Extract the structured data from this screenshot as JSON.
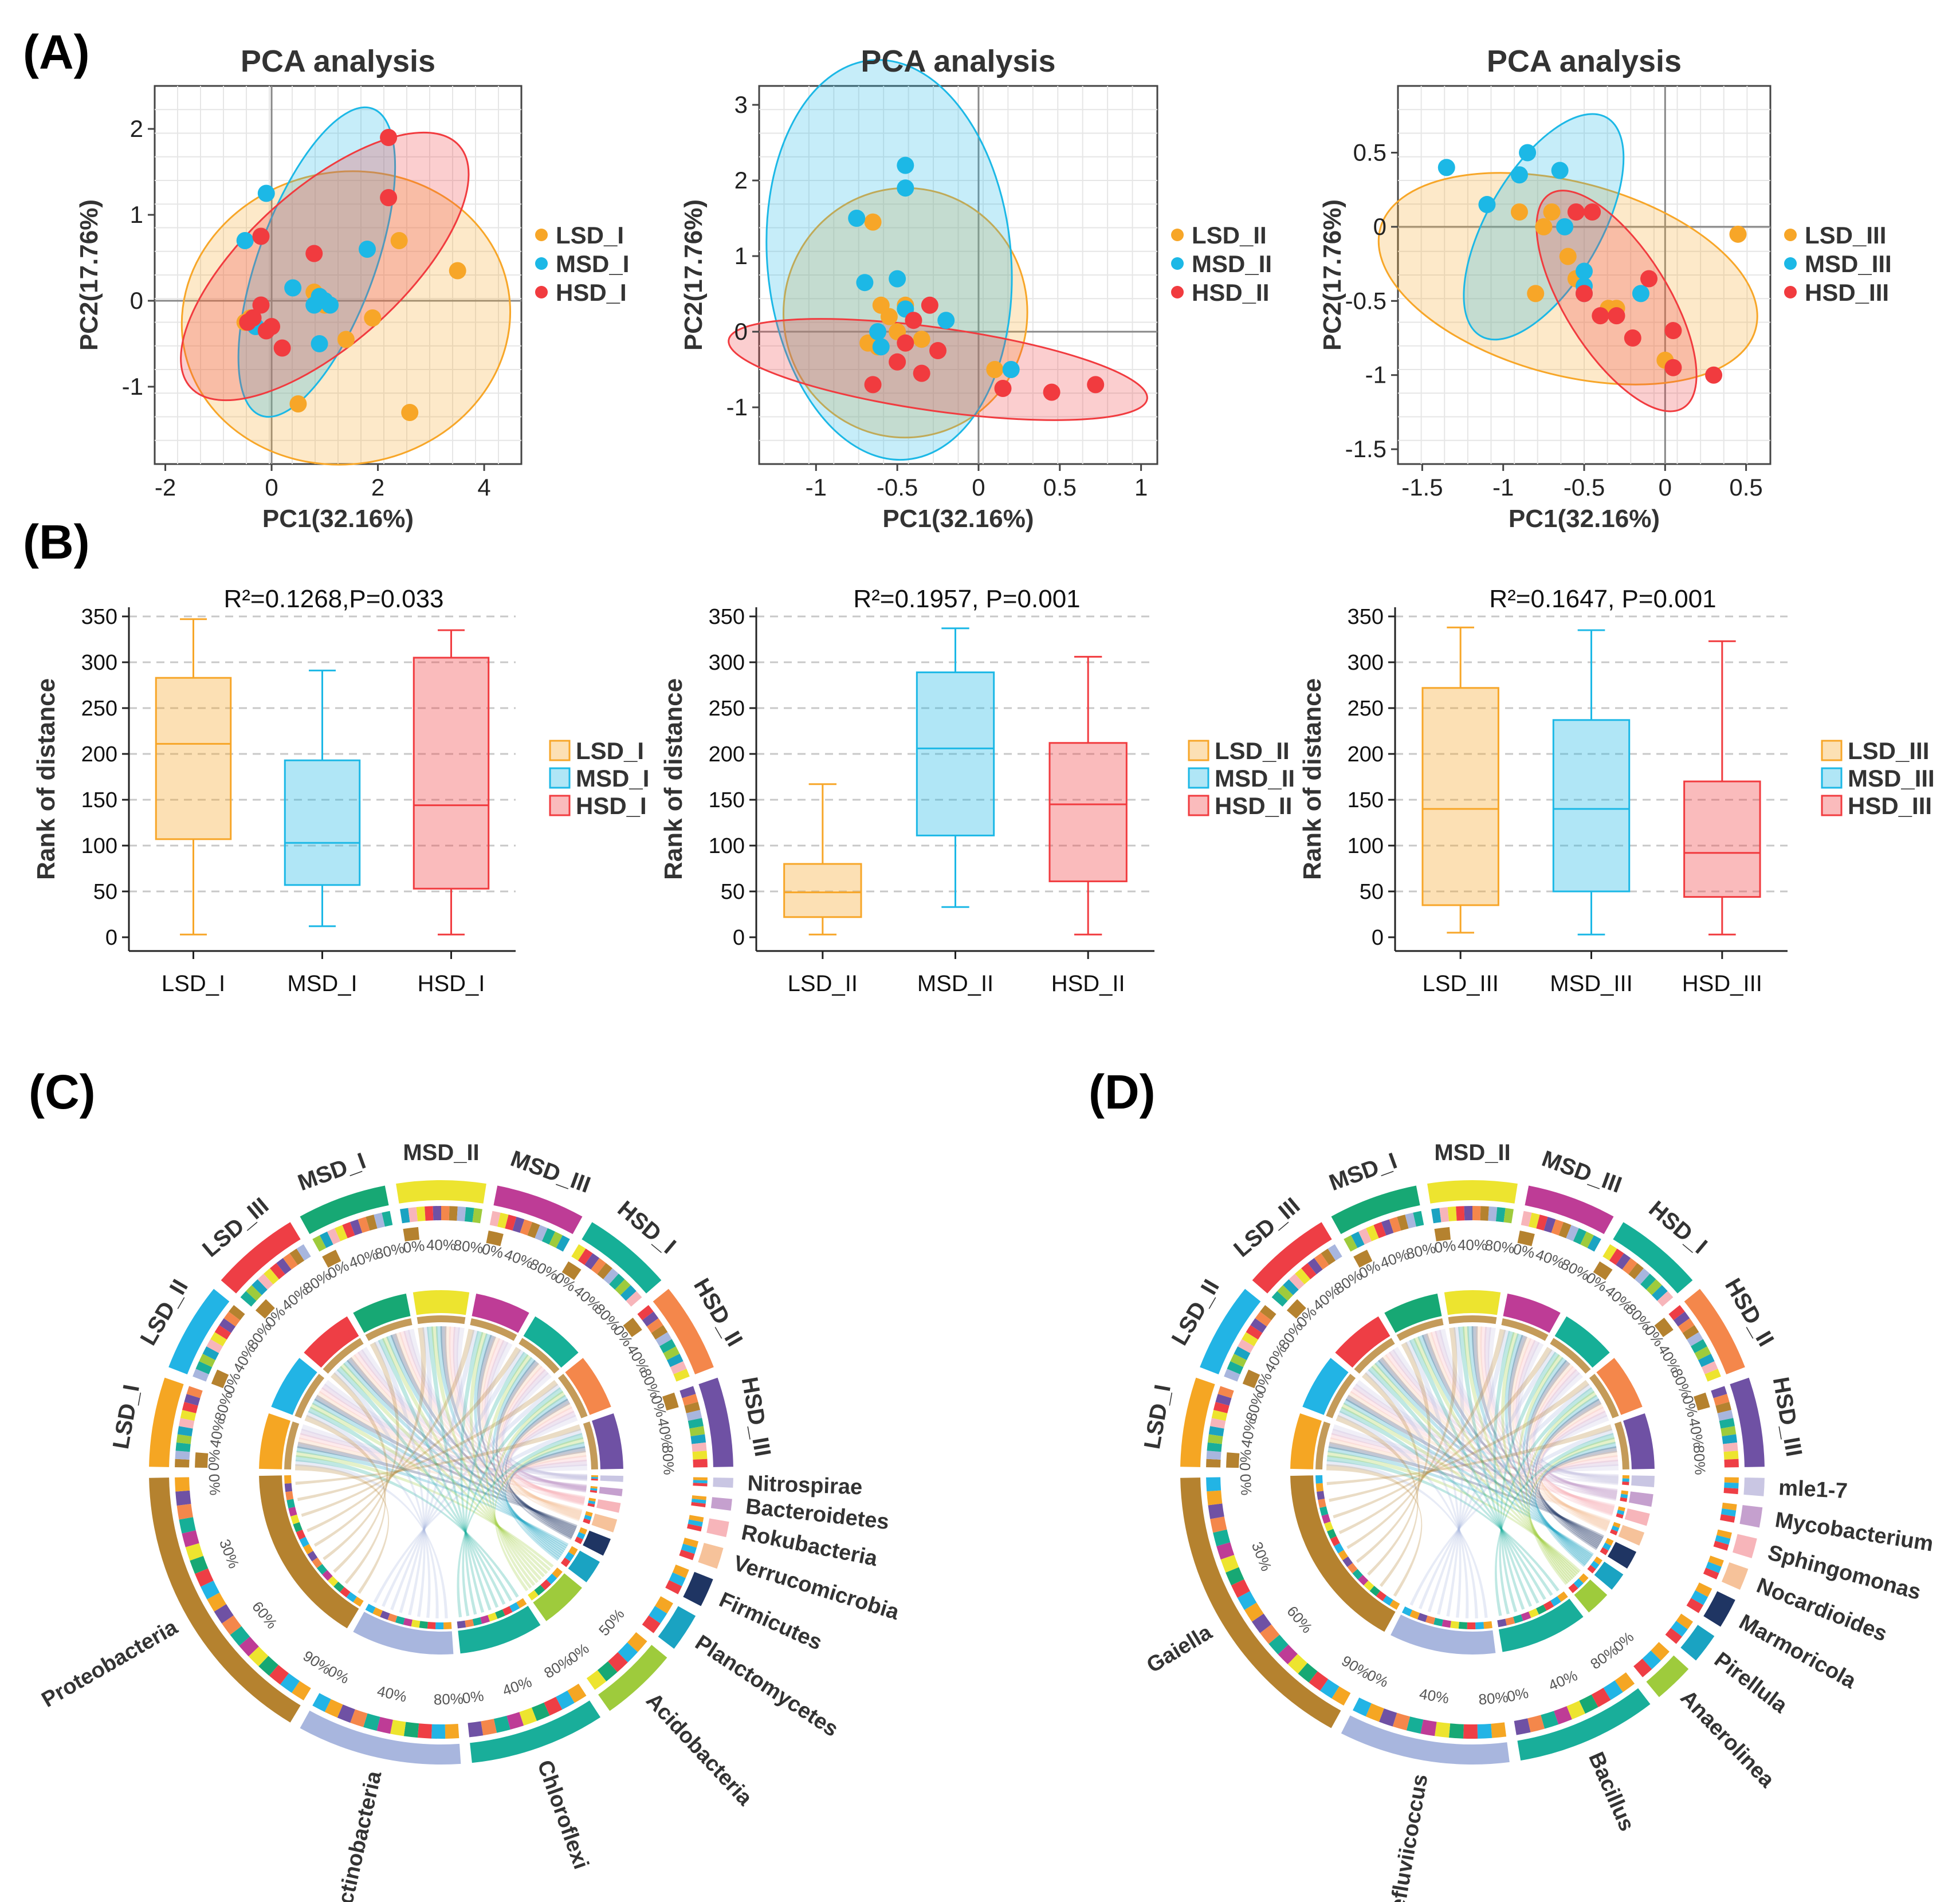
{
  "colors": {
    "LSD": "#F7A628",
    "MSD": "#1CB8E6",
    "HSD": "#F13B3F"
  },
  "panels": {
    "a": "(A)",
    "b": "(B)",
    "c": "(C)",
    "d": "(D)"
  },
  "chart_data": [
    {
      "type": "scatter",
      "id": "pca1",
      "title": "PCA analysis",
      "xlabel": "PC1(32.16%)",
      "ylabel": "PC2(17.76%)",
      "xlim": [
        -2.2,
        4.7
      ],
      "ylim": [
        -1.9,
        2.5
      ],
      "xticks": [
        -2,
        0,
        2,
        4
      ],
      "yticks": [
        -1,
        0,
        1,
        2
      ],
      "series": [
        {
          "name": "LSD_I",
          "group": "LSD",
          "x": [
            -0.5,
            0.5,
            0.8,
            1.0,
            1.4,
            1.9,
            2.4,
            3.5,
            2.6,
            -0.4
          ],
          "y": [
            -0.25,
            -1.2,
            0.1,
            -0.05,
            -0.45,
            -0.2,
            0.7,
            0.35,
            -1.3,
            -0.2
          ]
        },
        {
          "name": "MSD_I",
          "group": "MSD",
          "x": [
            -0.5,
            -0.1,
            0.4,
            0.8,
            0.9,
            1.0,
            1.1,
            0.9,
            1.8,
            -0.3
          ],
          "y": [
            0.7,
            1.25,
            0.15,
            -0.05,
            0.05,
            0.0,
            -0.05,
            -0.5,
            0.6,
            -0.3
          ]
        },
        {
          "name": "HSD_I",
          "group": "HSD",
          "x": [
            -0.2,
            -0.2,
            -0.35,
            0.0,
            -0.1,
            0.2,
            0.8,
            2.2,
            2.2,
            -0.45
          ],
          "y": [
            0.75,
            -0.05,
            -0.2,
            -0.3,
            -0.35,
            -0.55,
            0.55,
            1.9,
            1.2,
            -0.25
          ]
        }
      ],
      "ellipses": [
        {
          "group": "LSD",
          "cx": 1.4,
          "cy": -0.2,
          "rx": 3.1,
          "ry": 1.7,
          "angle": 10
        },
        {
          "group": "MSD",
          "cx": 0.85,
          "cy": 0.45,
          "rx": 1.1,
          "ry": 1.9,
          "angle": -20
        },
        {
          "group": "HSD",
          "cx": 1.0,
          "cy": 0.4,
          "rx": 3.4,
          "ry": 0.9,
          "angle": 42
        }
      ]
    },
    {
      "type": "scatter",
      "id": "pca2",
      "title": "PCA analysis",
      "xlabel": "PC1(32.16%)",
      "ylabel": "PC2(17.76%)",
      "xlim": [
        -1.35,
        1.1
      ],
      "ylim": [
        -1.75,
        3.25
      ],
      "xticks": [
        -1,
        -0.5,
        0,
        0.5,
        1
      ],
      "yticks": [
        -1,
        0,
        1,
        2,
        3
      ],
      "series": [
        {
          "name": "LSD_II",
          "group": "LSD",
          "x": [
            -0.65,
            -0.6,
            -0.55,
            -0.5,
            -0.45,
            -0.35,
            -0.45,
            0.1,
            -0.68,
            -0.62
          ],
          "y": [
            1.45,
            0.35,
            0.2,
            0.0,
            -0.15,
            -0.1,
            0.35,
            -0.5,
            -0.15,
            -0.2
          ]
        },
        {
          "name": "MSD_II",
          "group": "MSD",
          "x": [
            -0.75,
            -0.7,
            -0.6,
            -0.5,
            -0.45,
            -0.45,
            -0.45,
            -0.2,
            0.2,
            -0.62
          ],
          "y": [
            1.5,
            0.65,
            -0.2,
            0.7,
            1.9,
            2.2,
            0.3,
            0.15,
            -0.5,
            0.0
          ]
        },
        {
          "name": "HSD_II",
          "group": "HSD",
          "x": [
            -0.65,
            -0.5,
            -0.45,
            -0.4,
            -0.35,
            -0.3,
            -0.25,
            0.15,
            0.45,
            0.72
          ],
          "y": [
            -0.7,
            -0.4,
            -0.15,
            0.15,
            -0.55,
            0.35,
            -0.25,
            -0.75,
            -0.8,
            -0.7
          ]
        }
      ],
      "ellipses": [
        {
          "group": "LSD",
          "cx": -0.45,
          "cy": 0.25,
          "rx": 0.75,
          "ry": 1.65,
          "angle": -5
        },
        {
          "group": "MSD",
          "cx": -0.55,
          "cy": 0.95,
          "rx": 0.75,
          "ry": 2.65,
          "angle": 5
        },
        {
          "group": "HSD",
          "cx": -0.25,
          "cy": -0.5,
          "rx": 1.3,
          "ry": 0.55,
          "angle": -8
        }
      ]
    },
    {
      "type": "scatter",
      "id": "pca3",
      "title": "PCA analysis",
      "xlabel": "PC1(32.16%)",
      "ylabel": "PC2(17.76%)",
      "xlim": [
        -1.65,
        0.65
      ],
      "ylim": [
        -1.6,
        0.95
      ],
      "xticks": [
        -1.5,
        -1,
        -0.5,
        0,
        0.5
      ],
      "yticks": [
        -1.5,
        -1,
        -0.5,
        0,
        0.5
      ],
      "series": [
        {
          "name": "LSD_III",
          "group": "LSD",
          "x": [
            -0.9,
            -0.8,
            -0.75,
            -0.7,
            -0.6,
            -0.55,
            -0.35,
            -0.3,
            0.0,
            0.45
          ],
          "y": [
            0.1,
            -0.45,
            0.0,
            0.1,
            -0.2,
            -0.35,
            -0.55,
            -0.55,
            -0.9,
            -0.05
          ]
        },
        {
          "name": "MSD_III",
          "group": "MSD",
          "x": [
            -1.35,
            -1.1,
            -0.9,
            -0.85,
            -0.65,
            -0.62,
            -0.5,
            -0.5,
            -0.15,
            -0.5
          ],
          "y": [
            0.4,
            0.15,
            0.35,
            0.5,
            0.38,
            0.0,
            -0.3,
            -0.45,
            -0.45,
            -0.4
          ]
        },
        {
          "name": "HSD_III",
          "group": "HSD",
          "x": [
            -0.55,
            -0.45,
            -0.5,
            -0.3,
            -0.2,
            -0.1,
            0.05,
            0.05,
            0.3,
            -0.4
          ],
          "y": [
            0.1,
            0.1,
            -0.45,
            -0.6,
            -0.75,
            -0.35,
            -0.7,
            -0.95,
            -1.0,
            -0.6
          ]
        }
      ],
      "ellipses": [
        {
          "group": "LSD",
          "cx": -0.6,
          "cy": -0.35,
          "rx": 1.2,
          "ry": 0.65,
          "angle": -15
        },
        {
          "group": "MSD",
          "cx": -0.75,
          "cy": 0.0,
          "rx": 0.35,
          "ry": 0.85,
          "angle": -30
        },
        {
          "group": "HSD",
          "cx": -0.3,
          "cy": -0.5,
          "rx": 0.32,
          "ry": 0.85,
          "angle": 32
        }
      ]
    },
    {
      "type": "box",
      "id": "box1",
      "title": "R²=0.1268,P=0.033",
      "ylabel": "Rank of distance",
      "ylim": [
        -15,
        360
      ],
      "yticks": [
        0,
        50,
        100,
        150,
        200,
        250,
        300,
        350
      ],
      "categories": [
        "LSD_I",
        "MSD_I",
        "HSD_I"
      ],
      "boxes": [
        {
          "name": "LSD_I",
          "group": "LSD",
          "min": 3,
          "q1": 107,
          "median": 211,
          "q3": 283,
          "max": 347
        },
        {
          "name": "MSD_I",
          "group": "MSD",
          "min": 12,
          "q1": 57,
          "median": 103,
          "q3": 193,
          "max": 291
        },
        {
          "name": "HSD_I",
          "group": "HSD",
          "min": 3,
          "q1": 53,
          "median": 144,
          "q3": 305,
          "max": 335
        }
      ]
    },
    {
      "type": "box",
      "id": "box2",
      "title": "R²=0.1957, P=0.001",
      "ylabel": "Rank of distance",
      "ylim": [
        -15,
        360
      ],
      "yticks": [
        0,
        50,
        100,
        150,
        200,
        250,
        300,
        350
      ],
      "categories": [
        "LSD_II",
        "MSD_II",
        "HSD_II"
      ],
      "boxes": [
        {
          "name": "LSD_II",
          "group": "LSD",
          "min": 3,
          "q1": 22,
          "median": 49,
          "q3": 80,
          "max": 167
        },
        {
          "name": "MSD_II",
          "group": "MSD",
          "min": 33,
          "q1": 111,
          "median": 206,
          "q3": 289,
          "max": 337
        },
        {
          "name": "HSD_II",
          "group": "HSD",
          "min": 3,
          "q1": 61,
          "median": 145,
          "q3": 212,
          "max": 306
        }
      ]
    },
    {
      "type": "box",
      "id": "box3",
      "title": "R²=0.1647, P=0.001",
      "ylabel": "Rank of distance",
      "ylim": [
        -15,
        360
      ],
      "yticks": [
        0,
        50,
        100,
        150,
        200,
        250,
        300,
        350
      ],
      "categories": [
        "LSD_III",
        "MSD_III",
        "HSD_III"
      ],
      "boxes": [
        {
          "name": "LSD_III",
          "group": "LSD",
          "min": 5,
          "q1": 35,
          "median": 140,
          "q3": 272,
          "max": 338
        },
        {
          "name": "MSD_III",
          "group": "MSD",
          "min": 3,
          "q1": 50,
          "median": 140,
          "q3": 237,
          "max": 335
        },
        {
          "name": "HSD_III",
          "group": "HSD",
          "min": 3,
          "q1": 44,
          "median": 92,
          "q3": 170,
          "max": 323
        }
      ]
    },
    {
      "type": "chord",
      "id": "chordC",
      "samples": [
        "LSD_I",
        "LSD_II",
        "LSD_III",
        "MSD_I",
        "MSD_II",
        "MSD_III",
        "HSD_I",
        "HSD_II",
        "HSD_III"
      ],
      "sample_colors": [
        "#F5A623",
        "#22B4E5",
        "#EE3E45",
        "#17A874",
        "#EDE42F",
        "#BE3C96",
        "#16AF97",
        "#F4874B",
        "#6F51A4"
      ],
      "sample_scale": [
        "0%",
        "40%",
        "80%"
      ],
      "taxa": [
        "Proteobacteria",
        "Actinobacteria",
        "Chloroflexi",
        "Acidobacteria",
        "Planctomycetes",
        "Firmicutes",
        "Verrucomicrobia",
        "Rokubacteria",
        "Bacteroidetes",
        "Nitrospirae"
      ],
      "taxa_colors": [
        "#B5822F",
        "#A8B6DE",
        "#19AE9A",
        "#9ECB3C",
        "#1AA3C2",
        "#1F3563",
        "#F6C29A",
        "#F7B5BA",
        "#C5A0CE",
        "#C9C6E3"
      ],
      "taxa_values": [
        30,
        17,
        14,
        8,
        4,
        3,
        2.2,
        1.6,
        1.2,
        1.0
      ],
      "taxa_scale": [
        [
          "0%",
          "30%",
          "60%",
          "90%"
        ],
        [
          "0%",
          "40%",
          "80%"
        ],
        [
          "0%",
          "40%",
          "80%"
        ],
        [
          "0%",
          "50%"
        ]
      ]
    },
    {
      "type": "chord",
      "id": "chordD",
      "samples": [
        "LSD_I",
        "LSD_II",
        "LSD_III",
        "MSD_I",
        "MSD_II",
        "MSD_III",
        "HSD_I",
        "HSD_II",
        "HSD_III"
      ],
      "sample_colors": [
        "#F5A623",
        "#22B4E5",
        "#EE3E45",
        "#17A874",
        "#EDE42F",
        "#BE3C96",
        "#16AF97",
        "#F4874B",
        "#6F51A4"
      ],
      "sample_scale": [
        "0%",
        "40%",
        "80%"
      ],
      "taxa": [
        "Gaiella",
        "Defluviicoccus",
        "Bacillus",
        "Anaerolinea",
        "Pirellula",
        "Marmoricola",
        "Nocardioides",
        "Sphingomonas",
        "Mycobacterium",
        "mle1-7"
      ],
      "taxa_colors": [
        "#B5822F",
        "#A8B6DE",
        "#19AE9A",
        "#9ECB3C",
        "#1AA3C2",
        "#1F3563",
        "#F6C29A",
        "#F7B5BA",
        "#C5A0CE",
        "#C9C6E3"
      ],
      "taxa_values": [
        30,
        17,
        14,
        4,
        3,
        3,
        2.2,
        2,
        2,
        1.8
      ],
      "taxa_scale": [
        [
          "0%",
          "30%",
          "60%",
          "90%"
        ],
        [
          "0%",
          "40%",
          "80%"
        ],
        [
          "0%",
          "40%",
          "80%"
        ],
        [
          "0%"
        ]
      ]
    }
  ]
}
